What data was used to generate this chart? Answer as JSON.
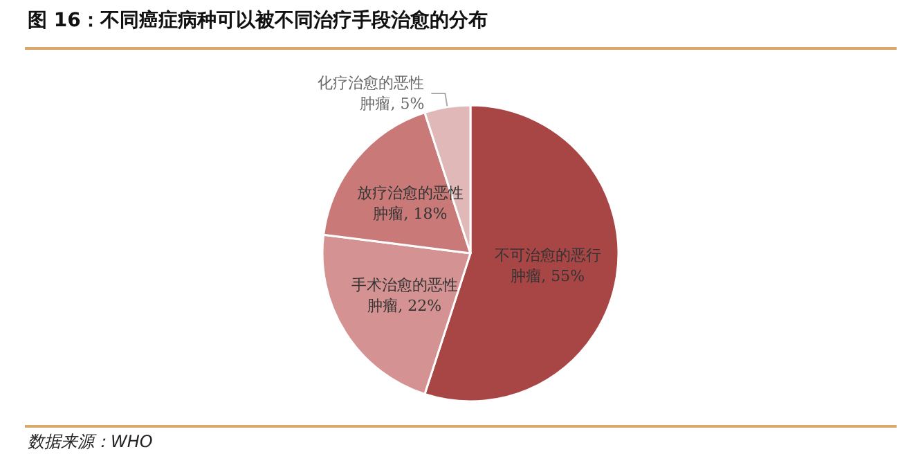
{
  "chart_data": {
    "type": "pie",
    "title": "图 16：不同癌症病种可以被不同治疗手段治愈的分布",
    "categories": [
      "不可治愈的恶行肿瘤",
      "手术治愈的恶性肿瘤",
      "放疗治愈的恶性肿瘤",
      "化疗治愈的恶性肿瘤"
    ],
    "values": [
      55,
      22,
      18,
      5
    ],
    "value_labels": [
      "55%",
      "22%",
      "18%",
      "5%"
    ],
    "colors": [
      "#a84545",
      "#d49292",
      "#c97a78",
      "#e0b8b8"
    ],
    "legend": false,
    "annotations": [
      "数据来源：WHO"
    ]
  }
}
